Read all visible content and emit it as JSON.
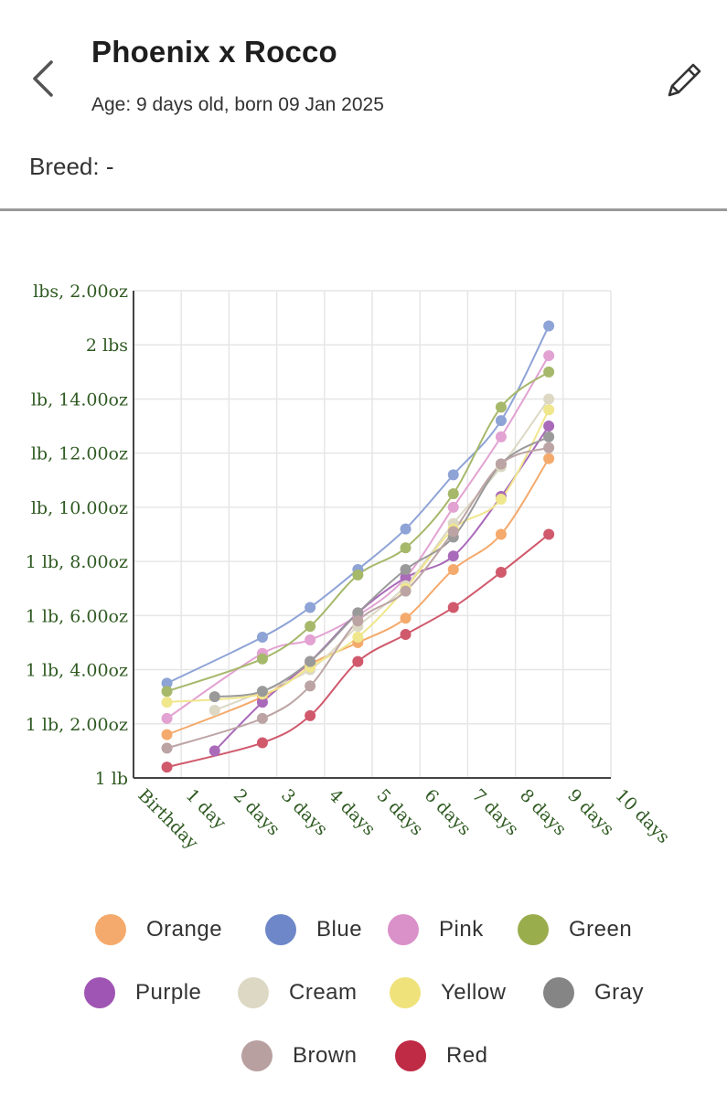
{
  "header": {
    "title": "Phoenix x Rocco",
    "age": "Age: 9 days old, born 09 Jan 2025",
    "breed": "Breed: -",
    "back_icon": "chevron-left-icon",
    "edit_icon": "pencil-icon"
  },
  "chart_data": {
    "type": "line",
    "title": "",
    "xlabel": "",
    "ylabel": "",
    "x_tick_labels": [
      "Birthday",
      "1 day",
      "2 days",
      "3 days",
      "4 days",
      "5 days",
      "6 days",
      "7 days",
      "8 days",
      "9 days",
      "10 days"
    ],
    "y_tick_labels": [
      "1 lb",
      "1 lb, 2.00oz",
      "1 lb, 4.00oz",
      "1 lb, 6.00oz",
      "1 lb, 8.00oz",
      "lb, 10.00oz",
      "lb, 12.00oz",
      "lb, 14.00oz",
      "2 lbs",
      "lbs, 2.00oz"
    ],
    "x_unit": "days",
    "y_unit": "oz",
    "xlim": [
      0,
      10
    ],
    "ylim": [
      16,
      34
    ],
    "grid": true,
    "legend_position": "bottom",
    "series": [
      {
        "name": "Orange",
        "color": "#f4aa6c",
        "points": [
          [
            0.7,
            17.6
          ],
          [
            2.7,
            19.0
          ],
          [
            3.7,
            20.2
          ],
          [
            4.7,
            21.0
          ],
          [
            5.7,
            21.9
          ],
          [
            6.7,
            23.7
          ],
          [
            7.7,
            25.0
          ],
          [
            8.7,
            27.8
          ]
        ]
      },
      {
        "name": "Blue",
        "color": "#8ea3d6",
        "points": [
          [
            0.7,
            19.5
          ],
          [
            2.7,
            21.2
          ],
          [
            3.7,
            22.3
          ],
          [
            4.7,
            23.7
          ],
          [
            5.7,
            25.2
          ],
          [
            6.7,
            27.2
          ],
          [
            7.7,
            29.2
          ],
          [
            8.7,
            32.7
          ]
        ]
      },
      {
        "name": "Pink",
        "color": "#e2a2d2",
        "points": [
          [
            0.7,
            18.2
          ],
          [
            2.7,
            20.6
          ],
          [
            3.7,
            21.1
          ],
          [
            4.7,
            22.0
          ],
          [
            5.7,
            23.4
          ],
          [
            6.7,
            26.0
          ],
          [
            7.7,
            28.6
          ],
          [
            8.7,
            31.6
          ]
        ]
      },
      {
        "name": "Green",
        "color": "#a6b86a",
        "points": [
          [
            0.7,
            19.2
          ],
          [
            2.7,
            20.4
          ],
          [
            3.7,
            21.6
          ],
          [
            4.7,
            23.5
          ],
          [
            5.7,
            24.5
          ],
          [
            6.7,
            26.5
          ],
          [
            7.7,
            29.7
          ],
          [
            8.7,
            31.0
          ]
        ]
      },
      {
        "name": "Purple",
        "color": "#a96ab9",
        "points": [
          [
            1.7,
            17.0
          ],
          [
            2.7,
            18.8
          ],
          [
            3.7,
            20.3
          ],
          [
            4.7,
            22.1
          ],
          [
            5.7,
            23.4
          ],
          [
            6.7,
            24.2
          ],
          [
            7.7,
            26.4
          ],
          [
            8.7,
            29.0
          ]
        ]
      },
      {
        "name": "Cream",
        "color": "#dcd8c4",
        "points": [
          [
            1.7,
            18.5
          ],
          [
            2.7,
            19.2
          ],
          [
            3.7,
            20.0
          ],
          [
            4.7,
            21.6
          ],
          [
            5.7,
            23.1
          ],
          [
            6.7,
            25.4
          ],
          [
            7.7,
            27.5
          ],
          [
            8.7,
            30.0
          ]
        ]
      },
      {
        "name": "Yellow",
        "color": "#f0e68c",
        "points": [
          [
            0.7,
            18.8
          ],
          [
            2.7,
            19.1
          ],
          [
            3.7,
            20.1
          ],
          [
            4.7,
            21.2
          ],
          [
            5.7,
            23.0
          ],
          [
            6.7,
            25.2
          ],
          [
            7.7,
            26.3
          ],
          [
            8.7,
            29.6
          ]
        ]
      },
      {
        "name": "Gray",
        "color": "#9a9a9a",
        "points": [
          [
            1.7,
            19.0
          ],
          [
            2.7,
            19.2
          ],
          [
            3.7,
            20.3
          ],
          [
            4.7,
            22.1
          ],
          [
            5.7,
            23.7
          ],
          [
            6.7,
            24.9
          ],
          [
            7.7,
            27.6
          ],
          [
            8.7,
            28.6
          ]
        ]
      },
      {
        "name": "Brown",
        "color": "#bca4a4",
        "points": [
          [
            0.7,
            17.1
          ],
          [
            2.7,
            18.2
          ],
          [
            3.7,
            19.4
          ],
          [
            4.7,
            21.8
          ],
          [
            5.7,
            22.9
          ],
          [
            6.7,
            25.1
          ],
          [
            7.7,
            27.6
          ],
          [
            8.7,
            28.2
          ]
        ]
      },
      {
        "name": "Red",
        "color": "#d0596c",
        "points": [
          [
            0.7,
            16.4
          ],
          [
            2.7,
            17.3
          ],
          [
            3.7,
            18.3
          ],
          [
            4.7,
            20.3
          ],
          [
            5.7,
            21.3
          ],
          [
            6.7,
            22.3
          ],
          [
            7.7,
            23.6
          ],
          [
            8.7,
            25.0
          ]
        ]
      }
    ]
  },
  "legend": {
    "items": [
      {
        "label": "Orange",
        "color": "#f4aa6c"
      },
      {
        "label": "Blue",
        "color": "#6e87c8"
      },
      {
        "label": "Pink",
        "color": "#da90c9"
      },
      {
        "label": "Green",
        "color": "#9aad4c"
      },
      {
        "label": "Purple",
        "color": "#9f55b3"
      },
      {
        "label": "Cream",
        "color": "#dcd8c4"
      },
      {
        "label": "Yellow",
        "color": "#f0e27a"
      },
      {
        "label": "Gray",
        "color": "#858585"
      },
      {
        "label": "Brown",
        "color": "#b8a0a0"
      },
      {
        "label": "Red",
        "color": "#bf2a45"
      }
    ]
  }
}
